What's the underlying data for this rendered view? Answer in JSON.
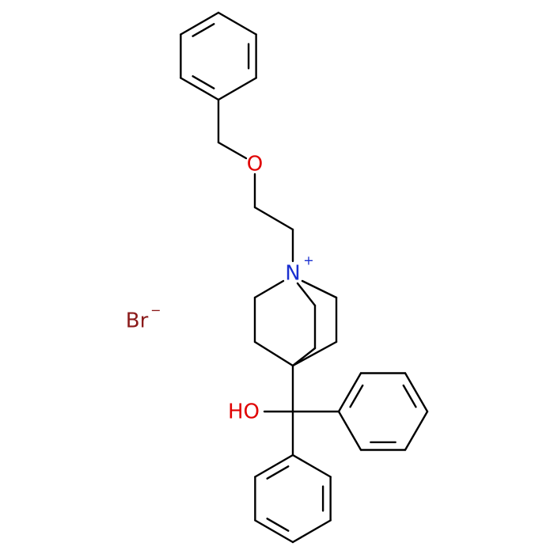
{
  "atoms": [
    {
      "label": "O"
    },
    {
      "label": "N",
      "charge": "+"
    },
    {
      "label": "HO"
    },
    {
      "label": "Br",
      "charge": "−"
    }
  ]
}
